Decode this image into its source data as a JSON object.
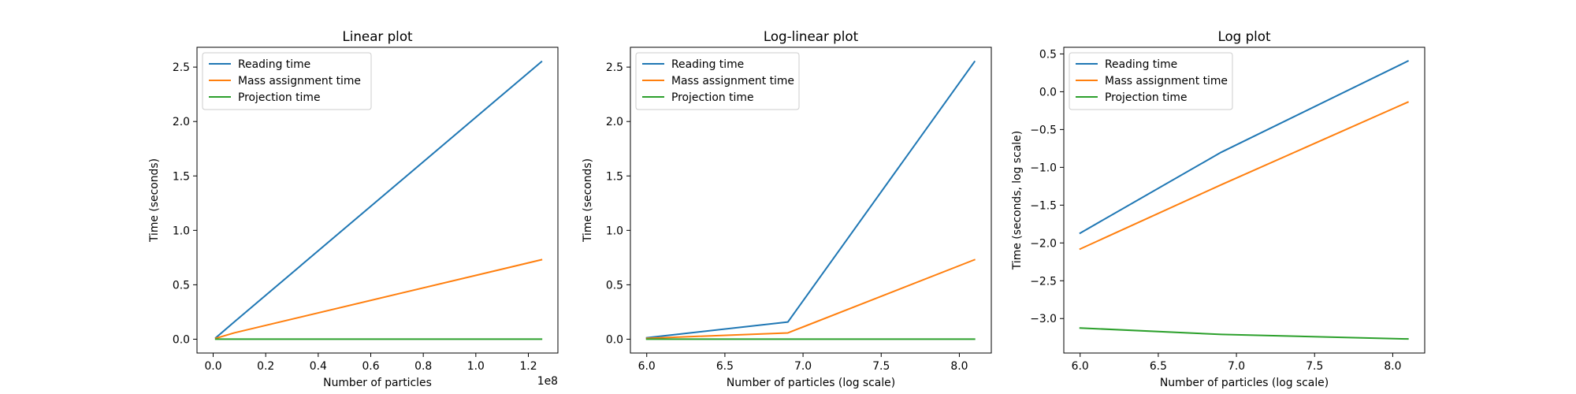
{
  "chart_data": [
    {
      "type": "line",
      "title": "Linear plot",
      "xlabel": "Number of particles",
      "ylabel": "Time (seconds)",
      "x_offset_label": "1e8",
      "xlim": [
        -0.0615,
        1.3125
      ],
      "ylim": [
        -0.127,
        2.682
      ],
      "xticks": [
        0.0,
        0.2,
        0.4,
        0.6,
        0.8,
        1.0,
        1.2
      ],
      "xtick_labels": [
        "0.0",
        "0.2",
        "0.4",
        "0.6",
        "0.8",
        "1.0",
        "1.2"
      ],
      "yticks": [
        0.0,
        0.5,
        1.0,
        1.5,
        2.0,
        2.5
      ],
      "ytick_labels": [
        "0.0",
        "0.5",
        "1.0",
        "1.5",
        "2.0",
        "2.5"
      ],
      "x": [
        0.01,
        0.08,
        1.25
      ],
      "series": [
        {
          "name": "Reading time",
          "color": "#1f77b4",
          "values": [
            0.013,
            0.158,
            2.55
          ]
        },
        {
          "name": "Mass assignment time",
          "color": "#ff7f0e",
          "values": [
            0.008,
            0.058,
            0.73
          ]
        },
        {
          "name": "Projection time",
          "color": "#2ca02c",
          "values": [
            0.00075,
            0.00062,
            0.00054
          ]
        }
      ],
      "legend": "top-left",
      "grid": false
    },
    {
      "type": "line",
      "title": "Log-linear plot",
      "xlabel": "Number of particles (log scale)",
      "ylabel": "Time (seconds)",
      "xlim": [
        5.8955,
        8.2045
      ],
      "ylim": [
        -0.127,
        2.682
      ],
      "xticks": [
        6.0,
        6.5,
        7.0,
        7.5,
        8.0
      ],
      "xtick_labels": [
        "6.0",
        "6.5",
        "7.0",
        "7.5",
        "8.0"
      ],
      "yticks": [
        0.0,
        0.5,
        1.0,
        1.5,
        2.0,
        2.5
      ],
      "ytick_labels": [
        "0.0",
        "0.5",
        "1.0",
        "1.5",
        "2.0",
        "2.5"
      ],
      "x": [
        6.0,
        6.903,
        8.097
      ],
      "series": [
        {
          "name": "Reading time",
          "color": "#1f77b4",
          "values": [
            0.013,
            0.158,
            2.55
          ]
        },
        {
          "name": "Mass assignment time",
          "color": "#ff7f0e",
          "values": [
            0.008,
            0.058,
            0.73
          ]
        },
        {
          "name": "Projection time",
          "color": "#2ca02c",
          "values": [
            0.00075,
            0.00062,
            0.00054
          ]
        }
      ],
      "legend": "top-left",
      "grid": false
    },
    {
      "type": "line",
      "title": "Log plot",
      "xlabel": "Number of particles (log scale)",
      "ylabel": "Time (seconds, log scale)",
      "xlim": [
        5.8955,
        8.2045
      ],
      "ylim": [
        -3.456,
        0.588
      ],
      "xticks": [
        6.0,
        6.5,
        7.0,
        7.5,
        8.0
      ],
      "xtick_labels": [
        "6.0",
        "6.5",
        "7.0",
        "7.5",
        "8.0"
      ],
      "yticks": [
        -3.0,
        -2.5,
        -2.0,
        -1.5,
        -1.0,
        -0.5,
        0.0,
        0.5
      ],
      "ytick_labels": [
        "−3.0",
        "−2.5",
        "−2.0",
        "−1.5",
        "−1.0",
        "−0.5",
        "0.0",
        "0.5"
      ],
      "x": [
        6.0,
        6.903,
        8.097
      ],
      "series": [
        {
          "name": "Reading time",
          "color": "#1f77b4",
          "values": [
            -1.87,
            -0.8,
            0.406
          ]
        },
        {
          "name": "Mass assignment time",
          "color": "#ff7f0e",
          "values": [
            -2.08,
            -1.23,
            -0.137
          ]
        },
        {
          "name": "Projection time",
          "color": "#2ca02c",
          "values": [
            -3.125,
            -3.21,
            -3.27
          ]
        }
      ],
      "legend": "top-left",
      "grid": false
    }
  ]
}
